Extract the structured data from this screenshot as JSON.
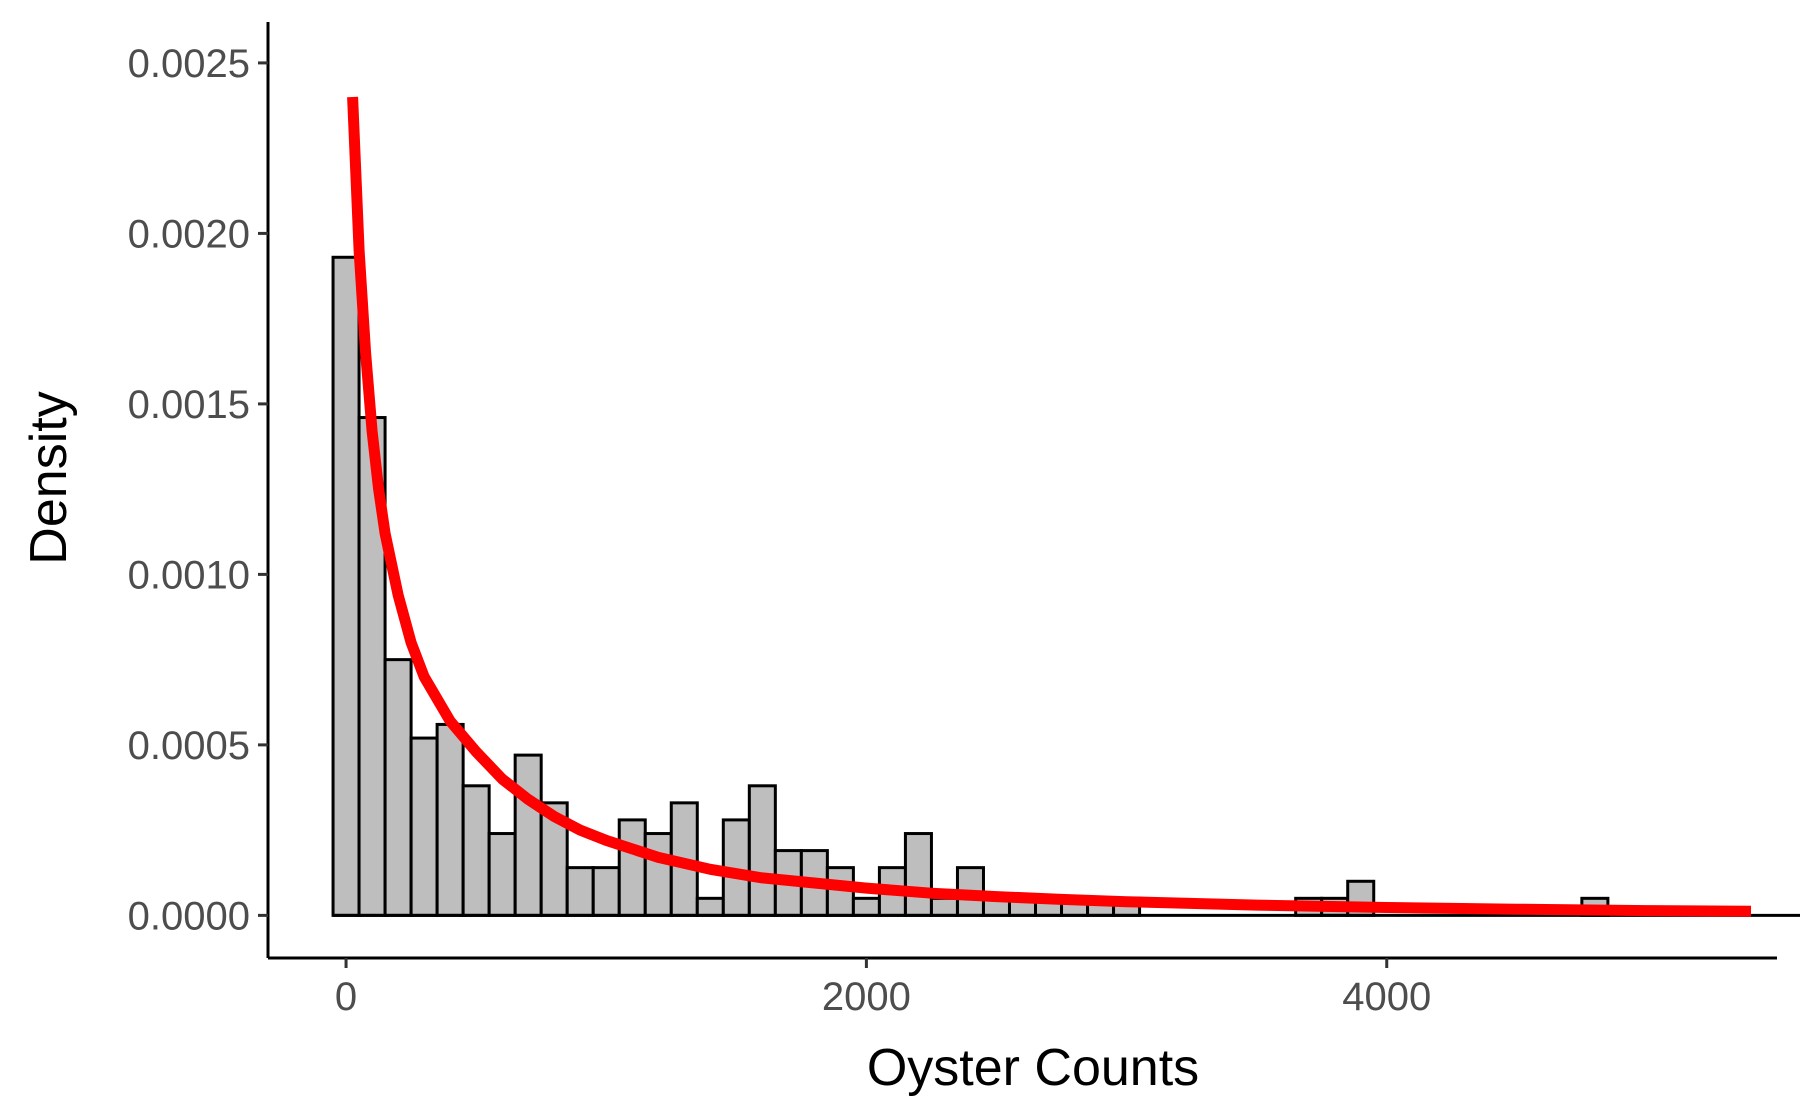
{
  "chart_data": {
    "type": "bar",
    "title": "",
    "xlabel": "Oyster Counts",
    "ylabel": "Density",
    "xlim": [
      -300,
      5500
    ],
    "ylim": [
      -0.000125,
      0.00262
    ],
    "x_ticks": [
      0,
      2000,
      4000
    ],
    "x_tick_labels": [
      "0",
      "2000",
      "4000"
    ],
    "y_ticks": [
      0.0,
      0.0005,
      0.001,
      0.0015,
      0.002,
      0.0025
    ],
    "y_tick_labels": [
      "0.0000",
      "0.0005",
      "0.0010",
      "0.0015",
      "0.0020",
      "0.0025"
    ],
    "grid": false,
    "histogram": {
      "bin_start": -50,
      "bin_width": 100,
      "fill_color": "#bebebe",
      "edge_color": "#000000",
      "values": [
        0.00193,
        0.00146,
        0.00075,
        0.00052,
        0.00056,
        0.00038,
        0.00024,
        0.00047,
        0.00033,
        0.00014,
        0.00014,
        0.00028,
        0.00024,
        0.00033,
        5e-05,
        0.00028,
        0.00038,
        0.00019,
        0.00019,
        0.00014,
        5e-05,
        0.00014,
        0.00024,
        5e-05,
        0.00014,
        5e-05,
        5e-05,
        5e-05,
        5e-05,
        5e-05,
        5e-05,
        0,
        0,
        0,
        0,
        0,
        0,
        5e-05,
        5e-05,
        0.0001,
        0,
        0,
        0,
        0,
        0,
        0,
        0,
        0,
        5e-05,
        0,
        0,
        0,
        0,
        0,
        0,
        0,
        0,
        0,
        0,
        0,
        0,
        0,
        0,
        0,
        0,
        0,
        0,
        0,
        0,
        0,
        0,
        0,
        5e-05,
        0,
        0,
        0,
        0,
        0,
        0,
        0,
        0,
        0
      ]
    },
    "fitted_curve": {
      "name": "fitted density",
      "color": "#ff0000",
      "x": [
        25,
        50,
        75,
        100,
        125,
        150,
        200,
        250,
        300,
        400,
        500,
        600,
        700,
        800,
        900,
        1000,
        1200,
        1400,
        1600,
        1800,
        2000,
        2250,
        2500,
        2750,
        3000,
        3500,
        4000,
        4500,
        5000,
        5400
      ],
      "y": [
        0.0024,
        0.00195,
        0.00165,
        0.00142,
        0.00125,
        0.00112,
        0.00094,
        0.0008,
        0.0007,
        0.00057,
        0.00048,
        0.0004,
        0.00034,
        0.00029,
        0.00025,
        0.00022,
        0.00017,
        0.000135,
        0.00011,
        9.5e-05,
        8e-05,
        6.5e-05,
        5.5e-05,
        4.7e-05,
        4e-05,
        3e-05,
        2.3e-05,
        1.8e-05,
        1.4e-05,
        1.2e-05
      ]
    }
  }
}
